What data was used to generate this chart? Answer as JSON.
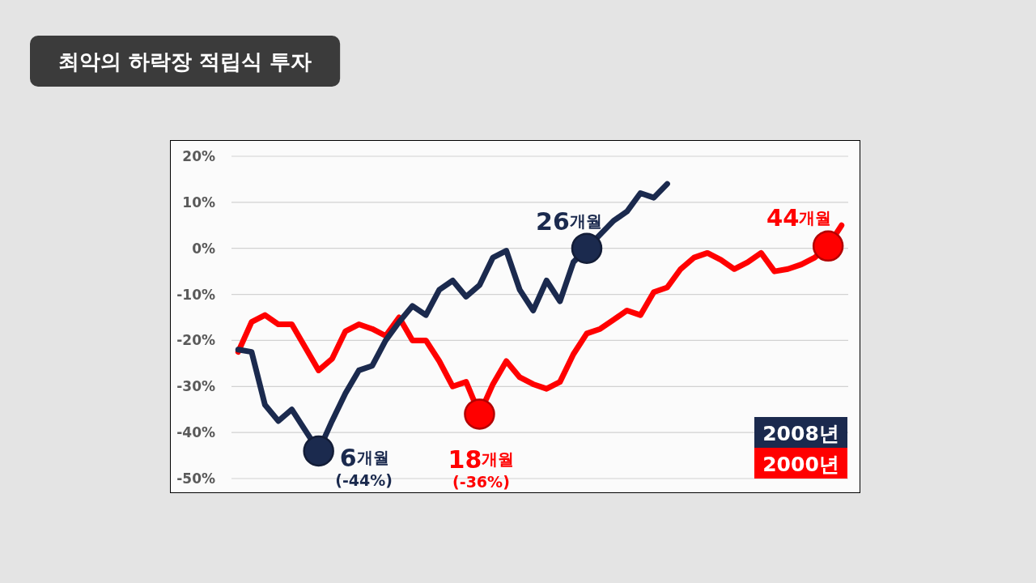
{
  "chart_data": {
    "type": "line",
    "title": "최악의 하락장 적립식 투자",
    "categories": [
      null,
      null,
      null,
      null,
      null,
      null,
      null,
      null,
      null,
      null,
      null,
      null,
      null,
      null,
      null,
      null,
      null,
      null,
      null,
      null,
      null,
      null,
      null,
      null,
      null,
      null,
      null,
      null,
      null,
      null,
      null,
      null,
      null,
      null,
      null,
      null,
      null,
      null,
      null,
      null,
      null,
      null,
      null,
      null,
      null,
      null
    ],
    "series": [
      {
        "name": "2008년",
        "color": "#1b2a4e",
        "values": [
          -22,
          -22.5,
          -34,
          -37.5,
          -35,
          -39.5,
          -44,
          -37.5,
          -31.5,
          -26.5,
          -25.5,
          -20,
          -16,
          -12.5,
          -14.5,
          -9,
          -7,
          -10.5,
          -8,
          -2,
          -0.5,
          -9,
          -13.5,
          -7,
          -11.5,
          -3,
          0,
          3,
          6,
          8,
          12,
          11,
          14,
          null,
          null,
          null,
          null,
          null,
          null,
          null,
          null,
          null,
          null,
          null,
          null,
          null
        ]
      },
      {
        "name": "2000년",
        "color": "#ff0000",
        "values": [
          -22.5,
          -16,
          -14.5,
          -16.5,
          -16.5,
          -21.5,
          -26.5,
          -24,
          -18,
          -16.5,
          -17.5,
          -19,
          -15,
          -20,
          -20,
          -24.5,
          -30,
          -29,
          -36,
          -29.5,
          -24.5,
          -28,
          -29.5,
          -30.5,
          -29,
          -23,
          -18.5,
          -17.5,
          -15.5,
          -13.5,
          -14.5,
          -9.5,
          -8.5,
          -4.5,
          -2,
          -1,
          -2.5,
          -4.5,
          -3,
          -1,
          -5,
          -4.5,
          -3.5,
          -2,
          0.5,
          5
        ]
      },
      {
        "type": "scatter",
        "marker": "circle",
        "color": "#1b2a4e",
        "values": [
          null,
          null,
          null,
          null,
          null,
          null,
          -44,
          null,
          null,
          null,
          null,
          null,
          null,
          null,
          null,
          null,
          null,
          null,
          null,
          null,
          null,
          null,
          null,
          null,
          null,
          null,
          0,
          null,
          null,
          null,
          null,
          null,
          null,
          null,
          null,
          null,
          null,
          null,
          null,
          null,
          null,
          null,
          null,
          null,
          null,
          null
        ]
      },
      {
        "type": "scatter",
        "marker": "circle",
        "color": "#ff0000",
        "values": [
          null,
          null,
          null,
          null,
          null,
          null,
          null,
          null,
          null,
          null,
          null,
          null,
          null,
          null,
          null,
          null,
          null,
          null,
          -36,
          null,
          null,
          null,
          null,
          null,
          null,
          null,
          null,
          null,
          null,
          null,
          null,
          null,
          null,
          null,
          null,
          null,
          null,
          null,
          null,
          null,
          null,
          null,
          null,
          null,
          0.5,
          null
        ]
      }
    ],
    "ylim": [
      -50,
      20
    ],
    "yticks": [
      {
        "value": 20,
        "label": "20%"
      },
      {
        "value": 10,
        "label": "10%"
      },
      {
        "value": 0,
        "label": "0%"
      },
      {
        "value": -10,
        "label": "-10%"
      },
      {
        "value": -20,
        "label": "-20%"
      },
      {
        "value": -30,
        "label": "-30%"
      },
      {
        "value": -40,
        "label": "-40%"
      },
      {
        "value": -50,
        "label": "-50%"
      }
    ],
    "tick_labels": "y",
    "grid": "y",
    "legend": "bottom right",
    "line_style": "solid",
    "annotations": [
      "6개월",
      "(-44%)",
      "18개월",
      "(-36%)",
      "26개월",
      "44개월"
    ]
  }
}
